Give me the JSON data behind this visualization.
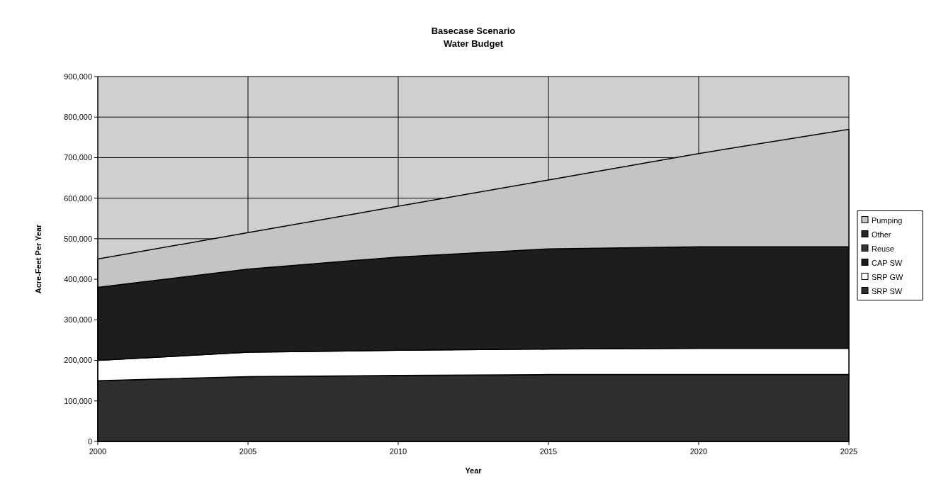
{
  "chart_data": {
    "type": "area",
    "stacked": true,
    "title": "Basecase Scenario",
    "subtitle": "Water Budget",
    "xlabel": "Year",
    "ylabel": "Acre-Feet Per Year",
    "x": [
      2000,
      2005,
      2010,
      2015,
      2020,
      2025
    ],
    "xlim": [
      2000,
      2025
    ],
    "xticks": [
      2000,
      2005,
      2010,
      2015,
      2020,
      2025
    ],
    "ylim": [
      0,
      900000
    ],
    "yticks": [
      {
        "value": 0,
        "label": "0"
      },
      {
        "value": 100000,
        "label": "100,000"
      },
      {
        "value": 200000,
        "label": "200,000"
      },
      {
        "value": 300000,
        "label": "300,000"
      },
      {
        "value": 400000,
        "label": "400,000"
      },
      {
        "value": 500000,
        "label": "500,000"
      },
      {
        "value": 600000,
        "label": "600,000"
      },
      {
        "value": 700000,
        "label": "700,000"
      },
      {
        "value": 800000,
        "label": "800,000"
      },
      {
        "value": 900000,
        "label": "900,000"
      }
    ],
    "grid": true,
    "legend": "right",
    "series": [
      {
        "name": "SRP SW",
        "color": "#2e2e2e",
        "values": [
          150000,
          160000,
          163000,
          165000,
          165000,
          165000
        ]
      },
      {
        "name": "SRP GW",
        "color": "#ffffff",
        "values": [
          50000,
          60000,
          62000,
          63000,
          65000,
          65000
        ]
      },
      {
        "name": "CAP SW",
        "color": "#1c1e1d",
        "values": [
          180000,
          205000,
          230000,
          247000,
          250000,
          250000
        ]
      },
      {
        "name": "Reuse",
        "color": "#333333",
        "values": [
          null,
          null,
          null,
          null,
          null,
          null
        ]
      },
      {
        "name": "Other",
        "color": "#262626",
        "values": [
          null,
          null,
          null,
          null,
          null,
          null
        ]
      },
      {
        "name": "Pumping",
        "color": "#c4c4c4",
        "values": [
          70000,
          90000,
          125000,
          170000,
          230000,
          290000
        ]
      }
    ]
  }
}
